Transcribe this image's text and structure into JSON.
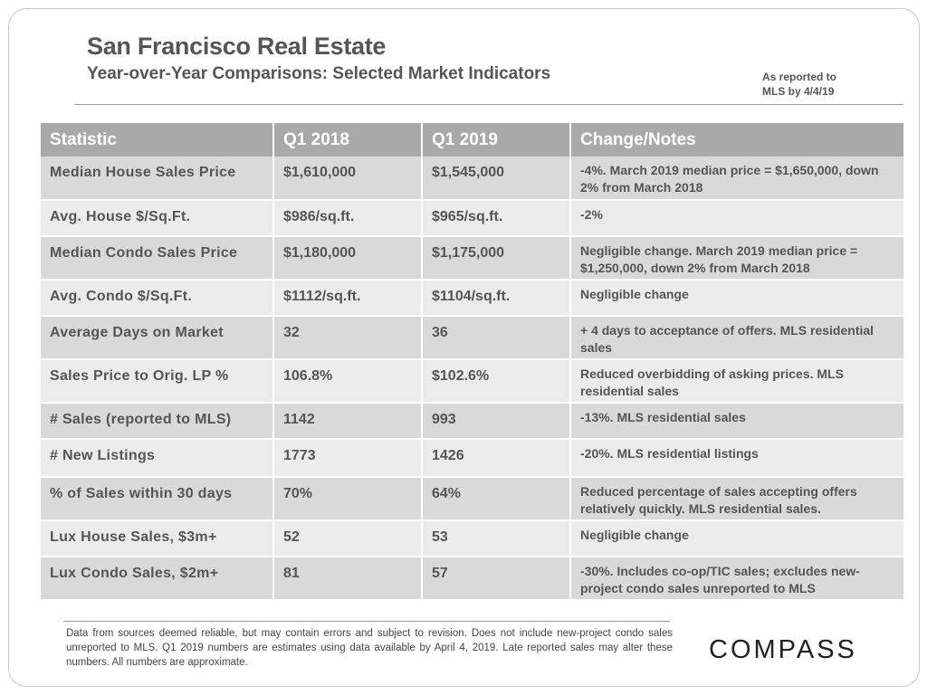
{
  "header": {
    "title": "San Francisco Real Estate",
    "subtitle": "Year-over-Year Comparisons:  Selected Market Indicators",
    "report_note_line1": "As reported to",
    "report_note_line2": "MLS by 4/4/19"
  },
  "table": {
    "columns": [
      "Statistic",
      "Q1 2018",
      "Q1 2019",
      "Change/Notes"
    ],
    "rows": [
      {
        "stat": "Median  House  Sales  Price",
        "q1_2018": "$1,610,000",
        "q1_2019": "$1,545,000",
        "notes": "-4%. March 2019 median price = $1,650,000, down 2% from March 2018"
      },
      {
        "stat": "Avg.  House  $/Sq.Ft.",
        "q1_2018": "$986/sq.ft.",
        "q1_2019": "$965/sq.ft.",
        "notes": "-2%"
      },
      {
        "stat": "Median  Condo  Sales  Price",
        "q1_2018": "$1,180,000",
        "q1_2019": "$1,175,000",
        "notes": "Negligible change. March 2019 median price = $1,250,000, down 2% from March 2018"
      },
      {
        "stat": "Avg.  Condo  $/Sq.Ft.",
        "q1_2018": "$1112/sq.ft.",
        "q1_2019": "$1104/sq.ft.",
        "notes": "Negligible change"
      },
      {
        "stat": "Average  Days  on  Market",
        "q1_2018": "32",
        "q1_2019": "36",
        "notes": "+ 4 days to acceptance of offers. MLS residential sales"
      },
      {
        "stat": "Sales  Price  to  Orig.  LP  %",
        "q1_2018": "106.8%",
        "q1_2019": "$102.6%",
        "notes": "Reduced overbidding of asking prices. MLS residential sales"
      },
      {
        "stat": "# Sales  (reported  to  MLS)",
        "q1_2018": "1142",
        "q1_2019": "993",
        "notes": "-13%. MLS residential sales"
      },
      {
        "stat": "# New  Listings",
        "q1_2018": "1773",
        "q1_2019": "1426",
        "notes": "-20%. MLS residential listings"
      },
      {
        "stat": "% of  Sales  within  30  days",
        "q1_2018": "70%",
        "q1_2019": "64%",
        "notes": "Reduced percentage of sales accepting offers relatively quickly.  MLS residential sales."
      },
      {
        "stat": "Lux  House  Sales,  $3m+",
        "q1_2018": "52",
        "q1_2019": "53",
        "notes": "Negligible change"
      },
      {
        "stat": "Lux  Condo  Sales,  $2m+",
        "q1_2018": "81",
        "q1_2019": "57",
        "notes": "-30%. Includes co-op/TIC sales; excludes new-project condo sales unreported to MLS"
      }
    ]
  },
  "footer": {
    "disclaimer": "Data from sources deemed reliable, but may contain errors and subject to revision. Does not include new-project condo sales unreported to MLS. Q1 2019 numbers are estimates using data available by April 4, 2019. Late reported sales may alter these numbers. All numbers are approximate."
  },
  "logo": {
    "text": "COMPASS"
  }
}
